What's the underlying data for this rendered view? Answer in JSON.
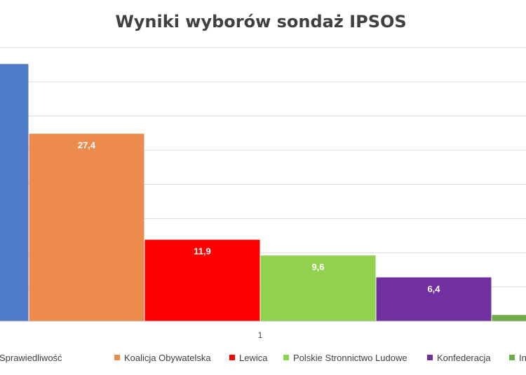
{
  "colors": {
    "grid": "#d9d9d9",
    "axis": "#bfbfbf",
    "pis": "#4f7ac7",
    "ko": "#ed8b4d",
    "lewica": "#ff0000",
    "psl": "#92d050",
    "konfederacja": "#7030a0",
    "inne": "#70ad47"
  },
  "chart_data": {
    "type": "bar",
    "title": "Wyniki wyborów sondaż IPSOS",
    "categories": [
      "1"
    ],
    "ylim": [
      0,
      40
    ],
    "grid": true,
    "legend_position": "bottom",
    "series": [
      {
        "name": "Prawo i Sprawiedliwość",
        "value": 37.6,
        "label": "",
        "color": "#4f7ac7"
      },
      {
        "name": "Koalicja Obywatelska",
        "value": 27.4,
        "label": "27,4",
        "color": "#ed8b4d"
      },
      {
        "name": "Lewica",
        "value": 11.9,
        "label": "11,9",
        "color": "#ff0000"
      },
      {
        "name": "Polskie Stronnictwo Ludowe",
        "value": 9.6,
        "label": "9,6",
        "color": "#92d050"
      },
      {
        "name": "Konfederacja",
        "value": 6.4,
        "label": "6,4",
        "color": "#7030a0"
      },
      {
        "name": "In",
        "value": 0.9,
        "label": "",
        "color": "#70ad47"
      }
    ]
  }
}
